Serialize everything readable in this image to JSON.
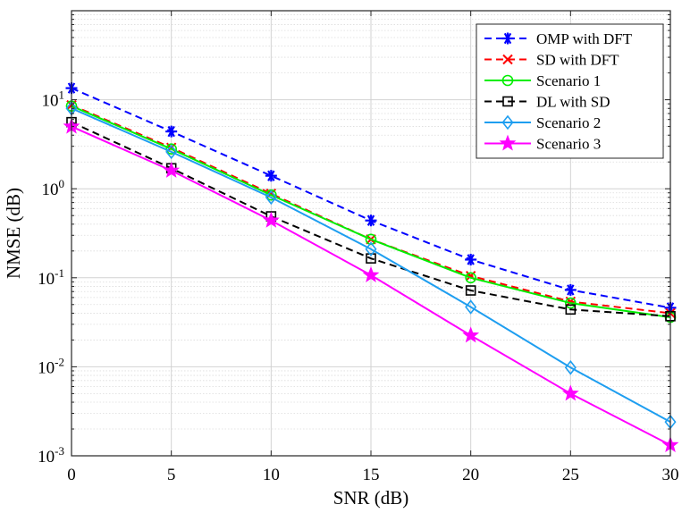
{
  "chart_data": {
    "type": "line",
    "title": "",
    "xlabel": "SNR (dB)",
    "ylabel": "NMSE (dB)",
    "x": [
      0,
      5,
      10,
      15,
      20,
      25,
      30
    ],
    "xlim": [
      0,
      30
    ],
    "ylim": [
      0.001,
      100
    ],
    "yscale": "log",
    "grid": true,
    "legend_position": "top-right",
    "x_ticks": [
      {
        "value": 0,
        "label": "0"
      },
      {
        "value": 5,
        "label": "5"
      },
      {
        "value": 10,
        "label": "10"
      },
      {
        "value": 15,
        "label": "15"
      },
      {
        "value": 20,
        "label": "20"
      },
      {
        "value": 25,
        "label": "25"
      },
      {
        "value": 30,
        "label": "30"
      }
    ],
    "y_ticks": [
      {
        "value": 0.001,
        "base": "10",
        "exp": "-3"
      },
      {
        "value": 0.01,
        "base": "10",
        "exp": "-2"
      },
      {
        "value": 0.1,
        "base": "10",
        "exp": "-1"
      },
      {
        "value": 1,
        "base": "10",
        "exp": "0"
      },
      {
        "value": 10,
        "base": "10",
        "exp": "1"
      }
    ],
    "series": [
      {
        "name": "OMP with DFT",
        "color": "#0000ff",
        "dash": "dashed",
        "marker": "asterisk",
        "values": [
          13.5,
          4.4,
          1.4,
          0.44,
          0.16,
          0.073,
          0.046
        ]
      },
      {
        "name": "SD with DFT",
        "color": "#ff0000",
        "dash": "dashed",
        "marker": "x",
        "values": [
          8.7,
          2.9,
          0.88,
          0.27,
          0.105,
          0.054,
          0.04
        ]
      },
      {
        "name": "Scenario 1",
        "color": "#00ee00",
        "dash": "solid",
        "marker": "circle",
        "values": [
          8.5,
          2.8,
          0.85,
          0.27,
          0.1,
          0.052,
          0.036
        ]
      },
      {
        "name": "DL with SD",
        "color": "#000000",
        "dash": "dashed",
        "marker": "square",
        "values": [
          5.6,
          1.7,
          0.49,
          0.165,
          0.072,
          0.044,
          0.037
        ]
      },
      {
        "name": "Scenario 2",
        "color": "#1e9ef0",
        "dash": "solid",
        "marker": "diamond",
        "values": [
          8.0,
          2.6,
          0.8,
          0.21,
          0.047,
          0.0098,
          0.0024
        ]
      },
      {
        "name": "Scenario 3",
        "color": "#ff00ff",
        "dash": "solid",
        "marker": "star",
        "values": [
          5.0,
          1.6,
          0.44,
          0.107,
          0.0225,
          0.005,
          0.00132
        ]
      }
    ]
  }
}
